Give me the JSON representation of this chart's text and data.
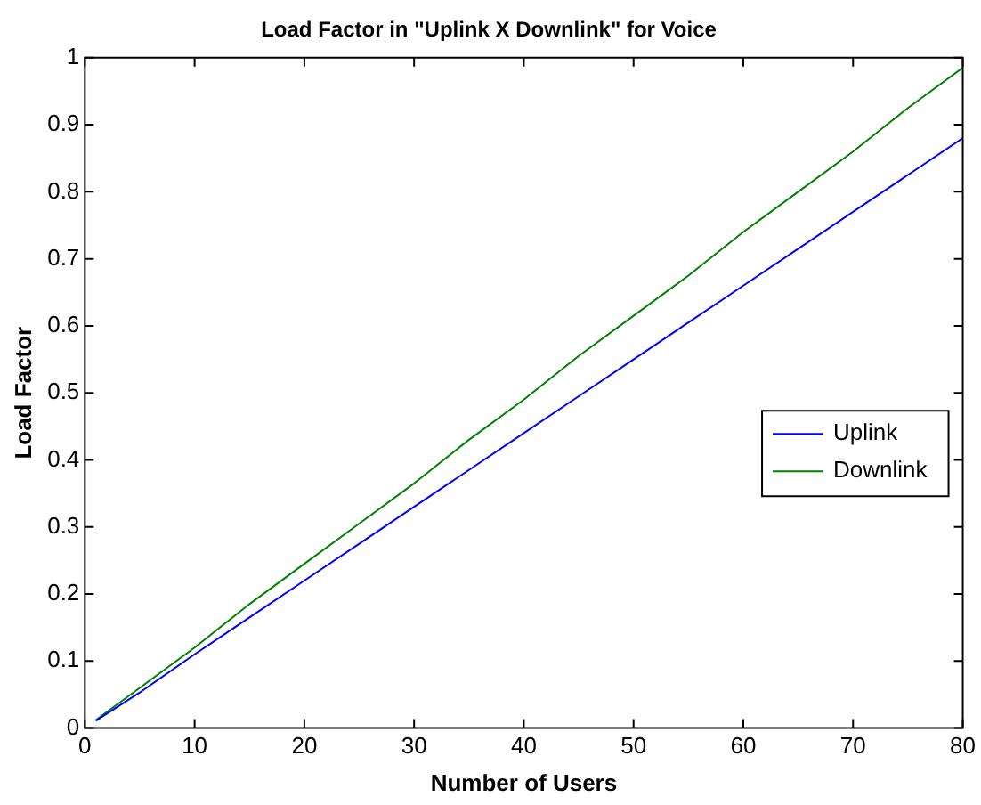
{
  "chart_data": {
    "type": "line",
    "title": "Load Factor in \"Uplink X Downlink\" for Voice",
    "xlabel": "Number of Users",
    "ylabel": "Load Factor",
    "x": [
      1,
      5,
      10,
      15,
      20,
      25,
      30,
      35,
      40,
      45,
      50,
      55,
      60,
      65,
      70,
      75,
      80
    ],
    "series": [
      {
        "name": "Uplink",
        "color": "#0000ff",
        "values": [
          0.011,
          0.053,
          0.11,
          0.165,
          0.22,
          0.275,
          0.33,
          0.385,
          0.44,
          0.495,
          0.55,
          0.605,
          0.66,
          0.715,
          0.77,
          0.825,
          0.88
        ]
      },
      {
        "name": "Downlink",
        "color": "#008000",
        "values": [
          0.012,
          0.06,
          0.12,
          0.185,
          0.245,
          0.305,
          0.365,
          0.43,
          0.49,
          0.555,
          0.615,
          0.675,
          0.74,
          0.8,
          0.86,
          0.925,
          0.985
        ]
      }
    ],
    "xlim": [
      0,
      80
    ],
    "xticks": [
      0,
      10,
      20,
      30,
      40,
      50,
      60,
      70,
      80
    ],
    "ylim": [
      0,
      1
    ],
    "yticks": [
      0,
      0.1,
      0.2,
      0.3,
      0.4,
      0.5,
      0.6,
      0.7,
      0.8,
      0.9,
      1
    ],
    "grid": false,
    "legend": "center right",
    "marker": "none",
    "line_style": "solid"
  }
}
